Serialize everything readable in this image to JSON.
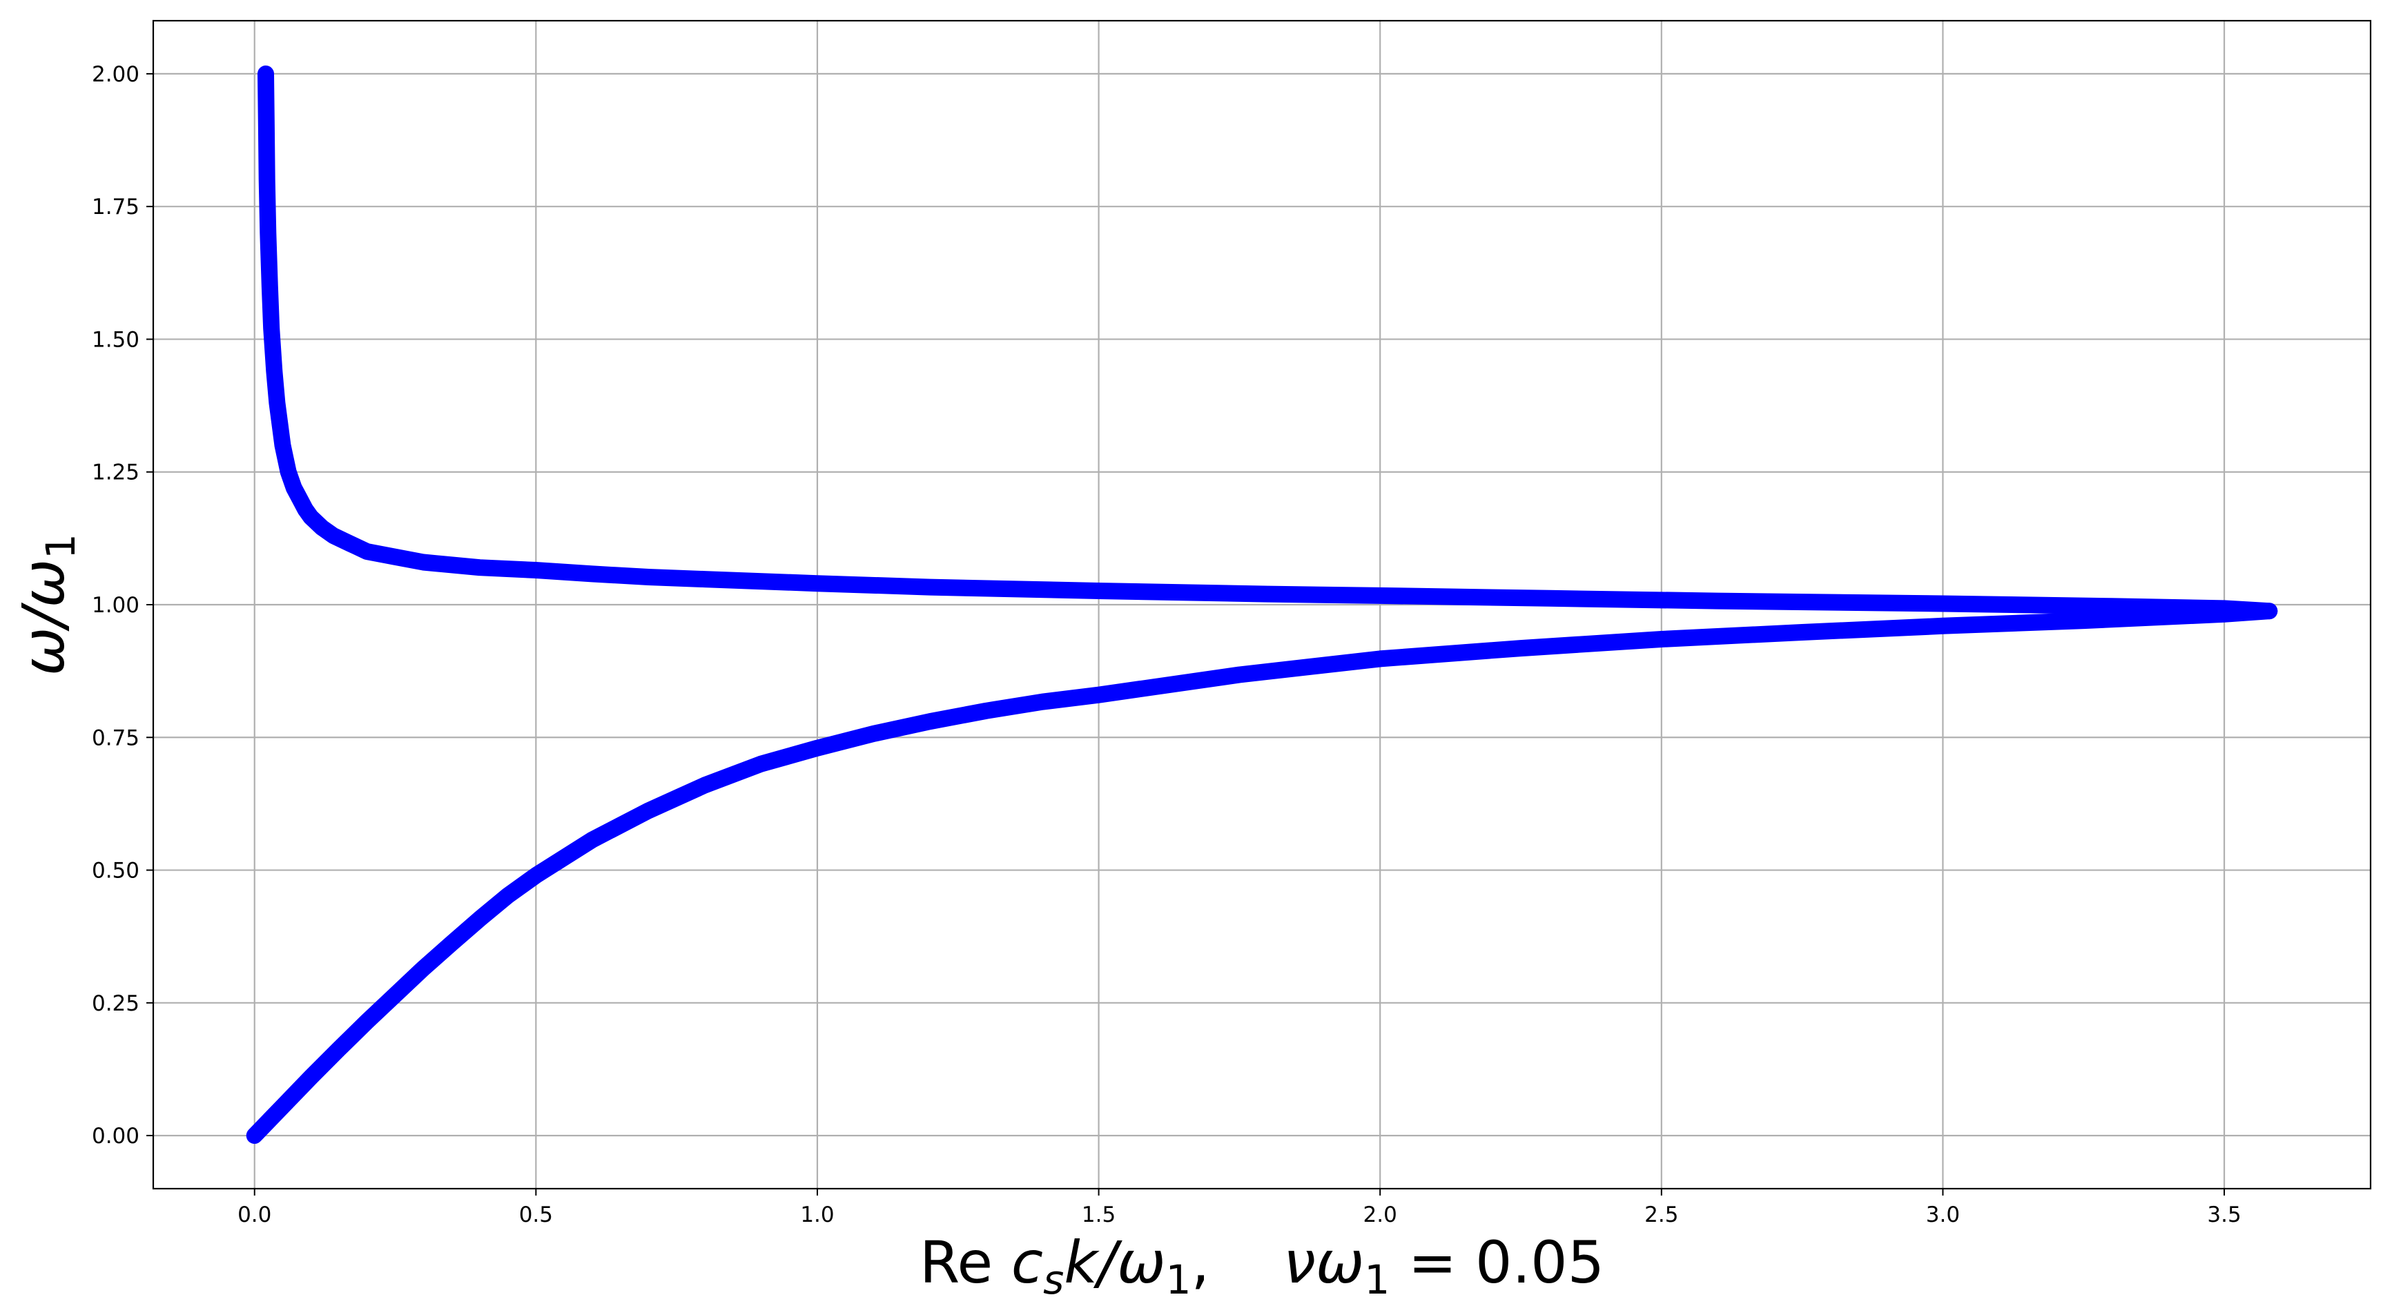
{
  "chart_data": {
    "type": "line",
    "title": "",
    "xlabel": "Re c_s k/ω_1,   νω_1 = 0.05",
    "xlabel_parts": {
      "re": "Re",
      "c": "c",
      "c_sub": "s",
      "k_over_omega": "k/ω",
      "omega_sub": "1",
      "sep": ",",
      "nu_omega": "νω",
      "nu_omega_sub": "1",
      "equals_value": " = 0.05"
    },
    "ylabel": "ω/ω1",
    "ylabel_parts": {
      "main": "ω/ω",
      "sub": "1"
    },
    "xlim": [
      -0.18,
      3.76
    ],
    "ylim": [
      -0.1,
      2.1
    ],
    "x_ticks": [
      "0.0",
      "0.5",
      "1.0",
      "1.5",
      "2.0",
      "2.5",
      "3.0",
      "3.5"
    ],
    "y_ticks": [
      "0.00",
      "0.25",
      "0.50",
      "0.75",
      "1.00",
      "1.25",
      "1.50",
      "1.75",
      "2.00"
    ],
    "grid": true,
    "color": "#0000ff",
    "marker": "star",
    "series": [
      {
        "x": [
          0.02,
          0.021,
          0.022,
          0.024,
          0.027,
          0.03,
          0.035,
          0.04,
          0.05,
          0.06,
          0.07,
          0.08,
          0.09,
          0.1,
          0.12,
          0.14,
          0.17,
          0.2,
          0.25,
          0.3,
          0.4,
          0.5,
          0.6,
          0.7,
          0.8,
          1.0,
          1.2,
          1.5,
          1.8,
          2.0,
          2.3,
          2.6,
          3.0,
          3.3,
          3.5,
          3.58
        ],
        "y": [
          2.0,
          1.9,
          1.8,
          1.7,
          1.6,
          1.52,
          1.44,
          1.38,
          1.3,
          1.25,
          1.22,
          1.2,
          1.18,
          1.165,
          1.145,
          1.13,
          1.115,
          1.1,
          1.09,
          1.08,
          1.07,
          1.065,
          1.058,
          1.052,
          1.048,
          1.04,
          1.033,
          1.026,
          1.02,
          1.017,
          1.012,
          1.007,
          1.002,
          0.997,
          0.993,
          0.988
        ]
      },
      {
        "x": [
          0.0,
          0.05,
          0.1,
          0.15,
          0.2,
          0.25,
          0.3,
          0.35,
          0.4,
          0.45,
          0.5,
          0.6,
          0.7,
          0.8,
          0.9,
          1.0,
          1.1,
          1.2,
          1.3,
          1.4,
          1.5,
          1.75,
          2.0,
          2.25,
          2.5,
          2.75,
          3.0,
          3.25,
          3.5,
          3.58
        ],
        "y": [
          0.0,
          0.055,
          0.11,
          0.163,
          0.215,
          0.265,
          0.315,
          0.362,
          0.408,
          0.452,
          0.49,
          0.557,
          0.612,
          0.66,
          0.7,
          0.73,
          0.757,
          0.78,
          0.8,
          0.817,
          0.83,
          0.868,
          0.898,
          0.918,
          0.935,
          0.948,
          0.96,
          0.97,
          0.982,
          0.988
        ]
      }
    ]
  }
}
